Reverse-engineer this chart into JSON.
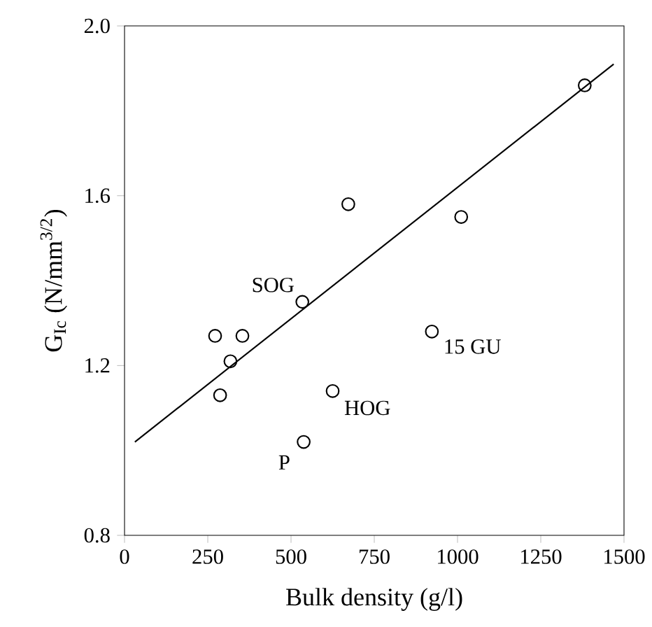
{
  "chart_data": {
    "type": "scatter",
    "xlabel": "Bulk density (g/l)",
    "ylabel": "G$_{Ic}$ (N/mm$^{3/2}$)",
    "xlim": [
      0,
      1500
    ],
    "ylim": [
      0.8,
      2.0
    ],
    "xticks": [
      0,
      250,
      500,
      750,
      1000,
      1250,
      1500
    ],
    "yticks": [
      0.8,
      1.2,
      1.6,
      {
        "value": 2.0,
        "label": "2.0"
      }
    ],
    "marker": "circle",
    "grid": false,
    "series": [
      {
        "color": "#000000",
        "x": [
          272,
          287,
          318,
          354,
          534,
          538,
          625,
          672,
          923,
          1011,
          1382
        ],
        "values": [
          1.27,
          1.13,
          1.21,
          1.27,
          1.35,
          1.02,
          1.14,
          1.58,
          1.28,
          1.55,
          1.86
        ]
      },
      {
        "type": "line",
        "marker": "none",
        "color": "#000000",
        "x": [
          31,
          1469
        ],
        "values": [
          1.02,
          1.91
        ]
      }
    ],
    "annotations": [
      {
        "text": "SOG",
        "x": 534,
        "y": 1.35
      },
      {
        "text": "15 GU",
        "x": 923,
        "y": 1.28
      },
      {
        "text": "HOG",
        "x": 625,
        "y": 1.14
      },
      {
        "text": "P",
        "x": 538,
        "y": 1.02
      }
    ]
  }
}
